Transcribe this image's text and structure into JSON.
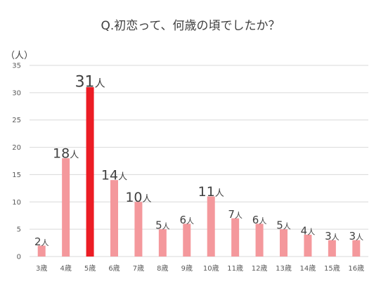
{
  "chart_data": {
    "type": "bar",
    "title": "Q.初恋って、何歳の頃でしたか？",
    "ylabel": "（人）",
    "xlabel": "",
    "categories": [
      "3歳",
      "4歳",
      "5歳",
      "6歳",
      "7歳",
      "8歳",
      "9歳",
      "10歳",
      "11歳",
      "12歳",
      "13歳",
      "14歳",
      "15歳",
      "16歳"
    ],
    "values": [
      2,
      18,
      31,
      14,
      10,
      5,
      6,
      11,
      7,
      6,
      5,
      4,
      3,
      3
    ],
    "value_suffix": "人",
    "highlight_index": 2,
    "ylim": [
      0,
      35
    ],
    "yticks": [
      0,
      5,
      10,
      15,
      20,
      25,
      30,
      35
    ],
    "grid": true,
    "colors": {
      "bar": "#f4989c",
      "highlight": "#ec1c24",
      "grid": "#d9d9d9"
    }
  }
}
